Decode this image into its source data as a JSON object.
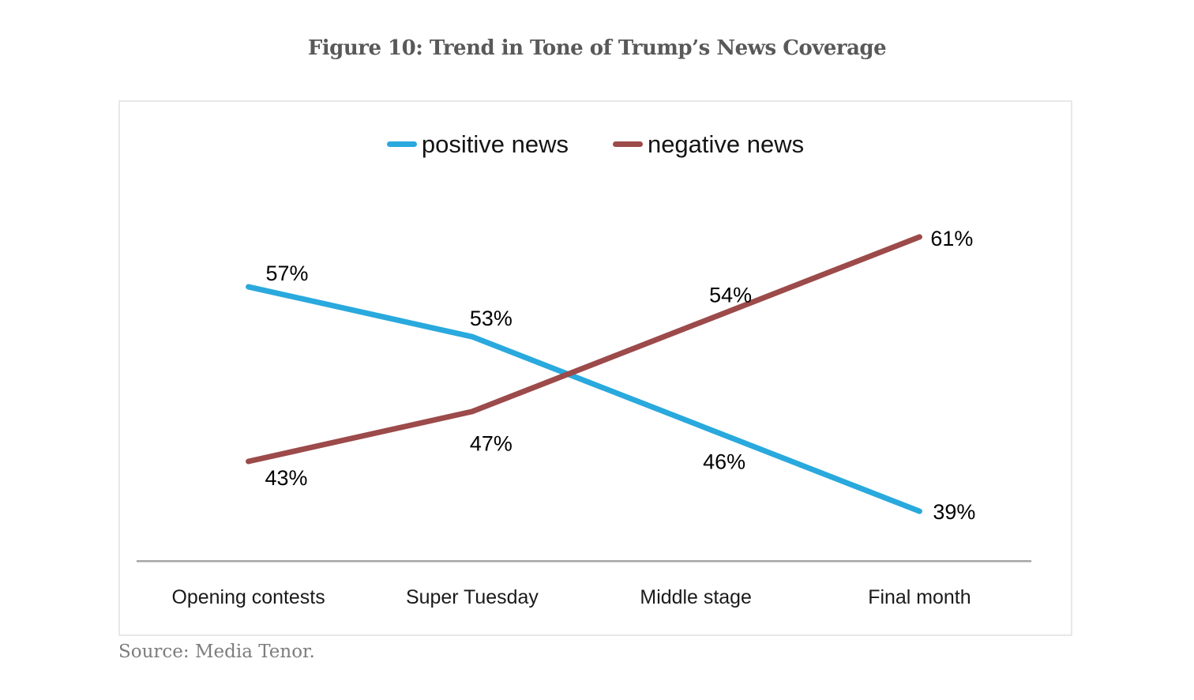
{
  "page": {
    "title": "Figure 10: Trend in Tone of Trump’s News Coverage",
    "source": "Source: Media Tenor."
  },
  "colors": {
    "positive_line": "#29a9dd",
    "negative_line": "#9c4a4a",
    "axis_line": "#a6a6a6",
    "chart_border": "#e8e8e8",
    "title_text": "#595959",
    "source_text": "#7d7d7d",
    "label_text": "#000000",
    "category_text": "#1a1a1a"
  },
  "chart_data": {
    "type": "line",
    "title": "Figure 10: Trend in Tone of Trump’s News Coverage",
    "categories": [
      "Opening contests",
      "Super Tuesday",
      "Middle stage",
      "Final month"
    ],
    "series": [
      {
        "name": "positive news",
        "color": "#29a9dd",
        "values": [
          57,
          53,
          46,
          39
        ]
      },
      {
        "name": "negative news",
        "color": "#9c4a4a",
        "values": [
          43,
          47,
          54,
          61
        ]
      }
    ],
    "value_suffix": "%",
    "ylim": [
      35,
      70
    ],
    "grid": false,
    "legend_position": "top",
    "xlabel": "",
    "ylabel": "",
    "source": "Source: Media Tenor."
  }
}
